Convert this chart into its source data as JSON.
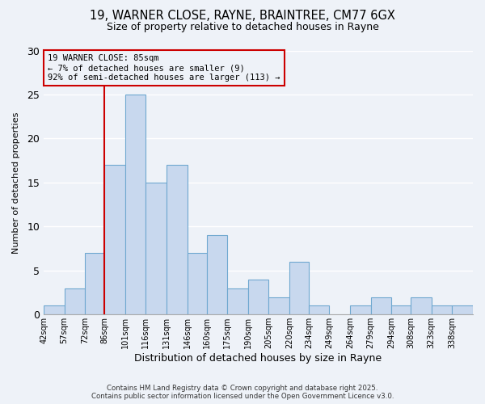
{
  "title": "19, WARNER CLOSE, RAYNE, BRAINTREE, CM77 6GX",
  "subtitle": "Size of property relative to detached houses in Rayne",
  "xlabel": "Distribution of detached houses by size in Rayne",
  "ylabel": "Number of detached properties",
  "bin_labels": [
    "42sqm",
    "57sqm",
    "72sqm",
    "86sqm",
    "101sqm",
    "116sqm",
    "131sqm",
    "146sqm",
    "160sqm",
    "175sqm",
    "190sqm",
    "205sqm",
    "220sqm",
    "234sqm",
    "249sqm",
    "264sqm",
    "279sqm",
    "294sqm",
    "308sqm",
    "323sqm",
    "338sqm"
  ],
  "bin_edges": [
    42,
    57,
    72,
    86,
    101,
    116,
    131,
    146,
    160,
    175,
    190,
    205,
    220,
    234,
    249,
    264,
    279,
    294,
    308,
    323,
    338,
    353
  ],
  "counts": [
    1,
    3,
    7,
    17,
    25,
    15,
    17,
    7,
    9,
    3,
    4,
    2,
    6,
    1,
    0,
    1,
    2,
    1,
    2,
    1,
    1
  ],
  "bar_color": "#c8d8ee",
  "bar_edge_color": "#6fa8d0",
  "vline_x": 86,
  "vline_color": "#cc0000",
  "annotation_lines": [
    "19 WARNER CLOSE: 85sqm",
    "← 7% of detached houses are smaller (9)",
    "92% of semi-detached houses are larger (113) →"
  ],
  "ylim": [
    0,
    30
  ],
  "yticks": [
    0,
    5,
    10,
    15,
    20,
    25,
    30
  ],
  "bg_color": "#eef2f8",
  "grid_color": "#ffffff",
  "footer_line1": "Contains HM Land Registry data © Crown copyright and database right 2025.",
  "footer_line2": "Contains public sector information licensed under the Open Government Licence v3.0."
}
